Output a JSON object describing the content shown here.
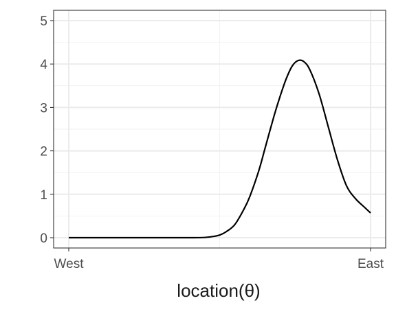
{
  "chart_data": {
    "type": "line",
    "title": "",
    "xlabel": "location(θ)",
    "ylabel": "",
    "xlim": [
      0,
      1
    ],
    "ylim": [
      0,
      5
    ],
    "x_ticks": [
      {
        "value": 0,
        "label": "West"
      },
      {
        "value": 1,
        "label": "East"
      }
    ],
    "y_ticks": [
      0,
      1,
      2,
      3,
      4,
      5
    ],
    "grid": true,
    "series": [
      {
        "color": "#000000",
        "points": [
          [
            0.0,
            0.0
          ],
          [
            0.1,
            0.0
          ],
          [
            0.2,
            0.0
          ],
          [
            0.3,
            0.0
          ],
          [
            0.4,
            0.0
          ],
          [
            0.45,
            0.005
          ],
          [
            0.48,
            0.03
          ],
          [
            0.5,
            0.06
          ],
          [
            0.52,
            0.13
          ],
          [
            0.55,
            0.3
          ],
          [
            0.58,
            0.65
          ],
          [
            0.6,
            0.95
          ],
          [
            0.63,
            1.55
          ],
          [
            0.65,
            2.05
          ],
          [
            0.68,
            2.8
          ],
          [
            0.7,
            3.25
          ],
          [
            0.72,
            3.65
          ],
          [
            0.74,
            3.95
          ],
          [
            0.76,
            4.08
          ],
          [
            0.78,
            4.05
          ],
          [
            0.8,
            3.85
          ],
          [
            0.83,
            3.3
          ],
          [
            0.86,
            2.55
          ],
          [
            0.89,
            1.8
          ],
          [
            0.92,
            1.2
          ],
          [
            0.95,
            0.9
          ],
          [
            0.98,
            0.7
          ],
          [
            1.0,
            0.57
          ]
        ]
      }
    ]
  }
}
